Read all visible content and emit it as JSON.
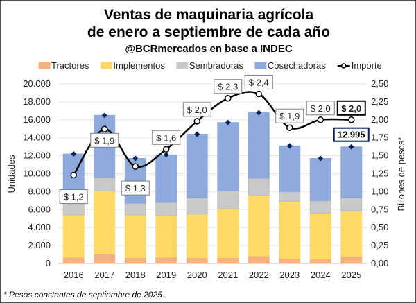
{
  "chart_data": {
    "type": "bar",
    "subtype": "stacked-bar-with-line-secondary-axis",
    "title": "Ventas de maquinaria agrícola",
    "title_line2": "de enero a septiembre de cada año",
    "subtitle": "@BCRmercados en base a INDEC",
    "ylabel": "Unidades",
    "y2label": "Billones de pesos*",
    "footnote": "* Pesos constantes de septiembre de 2025.",
    "ylim": [
      0,
      20000
    ],
    "y2lim": [
      0,
      2.5
    ],
    "yticks": [
      "0",
      "2.000",
      "4.000",
      "6.000",
      "8.000",
      "10.000",
      "12.000",
      "14.000",
      "16.000",
      "18.000",
      "20.000"
    ],
    "y2ticks": [
      "0,00",
      "0,25",
      "0,50",
      "0,75",
      "1,00",
      "1,25",
      "1,50",
      "1,75",
      "2,00",
      "2,25",
      "2,50"
    ],
    "grid": true,
    "legend_placement": "top",
    "categories": [
      "2016",
      "2017",
      "2018",
      "2019",
      "2020",
      "2021",
      "2022",
      "2023",
      "2024",
      "2025"
    ],
    "series": [
      {
        "name": "Tractores",
        "color": "#F4B183",
        "values": [
          700,
          1050,
          650,
          700,
          650,
          650,
          850,
          550,
          500,
          800
        ]
      },
      {
        "name": "Implementos",
        "color": "#FFD966",
        "values": [
          4700,
          7050,
          4750,
          4600,
          4850,
          5450,
          6750,
          6350,
          5100,
          5100
        ]
      },
      {
        "name": "Sembradoras",
        "color": "#C9C9C9",
        "values": [
          1300,
          1500,
          1300,
          1500,
          1800,
          2000,
          1900,
          1100,
          1400,
          1400
        ]
      },
      {
        "name": "Cosechadoras",
        "color": "#8EA9DB",
        "values": [
          5500,
          6900,
          5000,
          5300,
          7100,
          7600,
          7300,
          5100,
          4700,
          5695
        ]
      }
    ],
    "totals_marker_color": "#002060",
    "total_label_2025": "12.995",
    "line": {
      "name": "Importe",
      "axis": "secondary",
      "color": "#000000",
      "values": [
        1.23,
        1.87,
        1.35,
        1.59,
        1.98,
        2.3,
        2.36,
        1.89,
        2.0,
        2.0
      ],
      "labels": [
        "$ 1,2",
        "$ 1,9",
        "$ 1,3",
        "$ 1,6",
        "$ 2,0",
        "$ 2,3",
        "$ 2,4",
        "$ 1,9",
        "$ 2,0",
        "$ 2,0"
      ]
    }
  }
}
